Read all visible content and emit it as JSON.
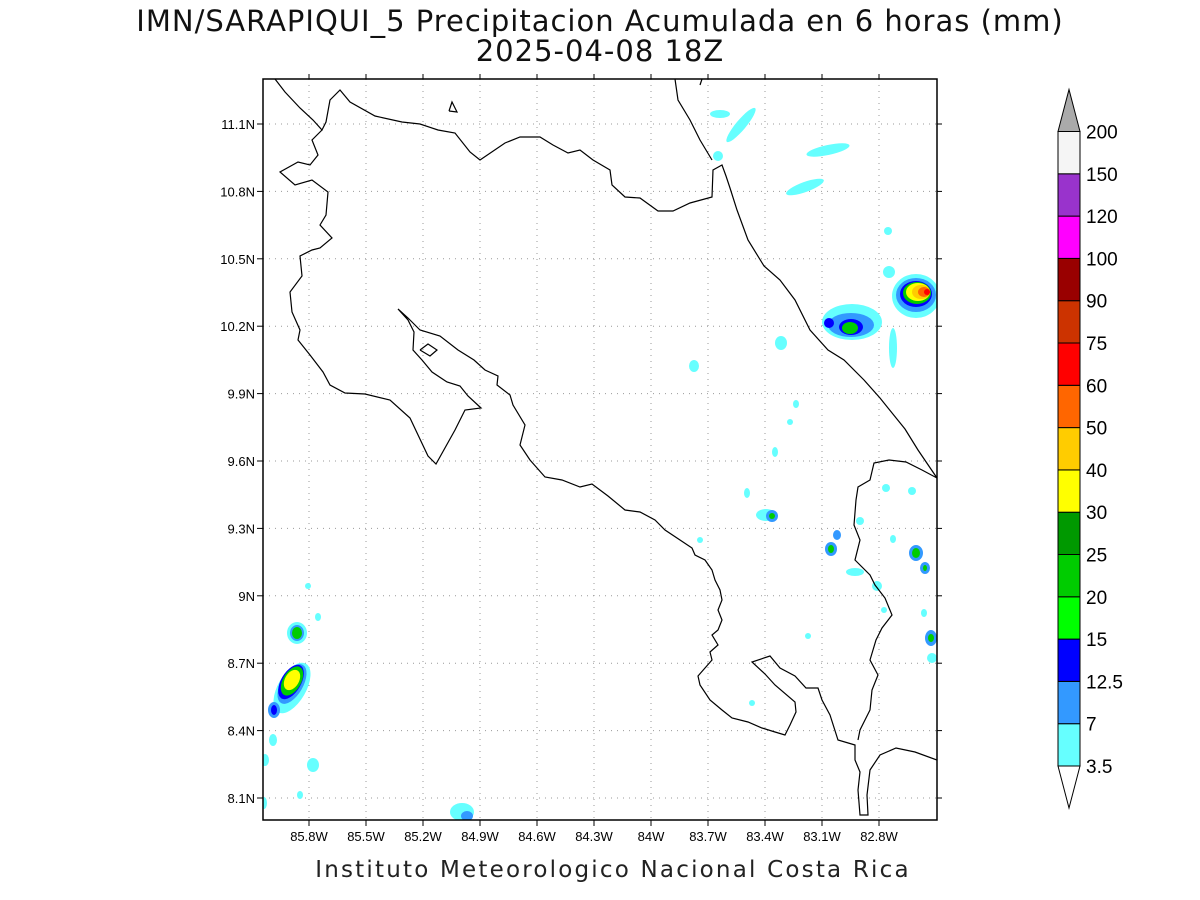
{
  "title": "IMN/SARAPIQUI_5 Precipitacion Acumulada en 6 horas (mm)",
  "subtitle": "2025-04-08 18Z",
  "credit": "Instituto Meteorologico Nacional Costa Rica",
  "map": {
    "lon_ticks": [
      "85.8W",
      "85.5W",
      "85.2W",
      "84.9W",
      "84.6W",
      "84.3W",
      "84W",
      "83.7W",
      "83.4W",
      "83.1W",
      "82.8W"
    ],
    "lat_ticks": [
      "11.1N",
      "10.8N",
      "10.5N",
      "10.2N",
      "9.9N",
      "9.6N",
      "9.3N",
      "9N",
      "8.7N",
      "8.4N",
      "8.1N"
    ],
    "grid": true,
    "grid_style": "dotted"
  },
  "colorbar": {
    "labels": [
      "3.5",
      "7",
      "12.5",
      "15",
      "20",
      "25",
      "30",
      "40",
      "50",
      "60",
      "75",
      "90",
      "100",
      "120",
      "150",
      "200"
    ],
    "colors": [
      "#66ffff",
      "#3399ff",
      "#0000ff",
      "#00ff00",
      "#00cc00",
      "#009900",
      "#ffff00",
      "#ffcc00",
      "#ff6600",
      "#ff0000",
      "#cc3300",
      "#990000",
      "#ff00ff",
      "#9933cc",
      "#f5f5f5",
      "#aaaaaa"
    ]
  }
}
